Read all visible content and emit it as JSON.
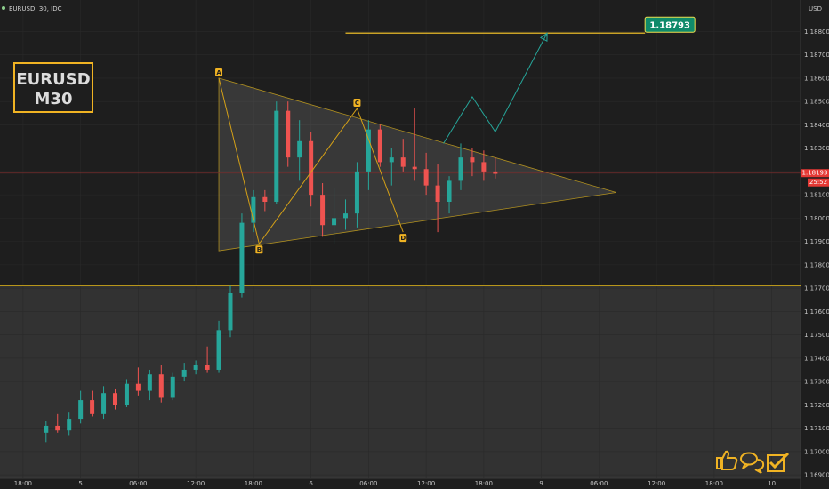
{
  "title": "EURUSD, 30, IDC",
  "currency": "USD",
  "badge": {
    "line1": "EURUSD",
    "line2": "M30"
  },
  "target": {
    "label": "1.18793",
    "value": 1.18793
  },
  "current_price": {
    "label": "1.18193",
    "value": 1.18193,
    "countdown": "25:52"
  },
  "colors": {
    "up": "#26a69a",
    "down": "#ef5350",
    "accent": "#f0b323",
    "target_green": "#0f8a6a",
    "support": "#d4a017"
  },
  "icons": [
    "thumbs-up-icon",
    "comments-icon",
    "check-box-icon"
  ],
  "pattern_points": [
    {
      "label": "A",
      "x": 15.0,
      "y": 1.186
    },
    {
      "label": "B",
      "x": 18.5,
      "y": 1.1789
    },
    {
      "label": "C",
      "x": 27.0,
      "y": 1.1847
    },
    {
      "label": "D",
      "x": 31.0,
      "y": 1.1794
    }
  ],
  "chart_data": {
    "type": "candlestick",
    "title": "EURUSD, 30, IDC",
    "ylabel": "USD",
    "ylim": [
      1.16885,
      1.18935
    ],
    "xlim": [
      -4,
      65.5
    ],
    "y_ticks": [
      "1.18800",
      "1.18700",
      "1.18600",
      "1.18500",
      "1.18400",
      "1.18300",
      "1.18200",
      "1.18100",
      "1.18000",
      "1.17900",
      "1.17800",
      "1.17700",
      "1.17600",
      "1.17500",
      "1.17400",
      "1.17300",
      "1.17200",
      "1.17100",
      "1.17000",
      "1.16900"
    ],
    "x_ticks": [
      {
        "label": "18:00",
        "x": -2
      },
      {
        "label": "5",
        "x": 3
      },
      {
        "label": "06:00",
        "x": 8
      },
      {
        "label": "12:00",
        "x": 13
      },
      {
        "label": "18:00",
        "x": 18
      },
      {
        "label": "6",
        "x": 23
      },
      {
        "label": "06:00",
        "x": 28
      },
      {
        "label": "12:00",
        "x": 33
      },
      {
        "label": "18:00",
        "x": 38
      },
      {
        "label": "9",
        "x": 43
      },
      {
        "label": "06:00",
        "x": 48
      },
      {
        "label": "12:00",
        "x": 53
      },
      {
        "label": "18:00",
        "x": 58
      },
      {
        "label": "10",
        "x": 63
      }
    ],
    "support_level": 1.1771,
    "target_level": 1.18793,
    "triangle": [
      {
        "x": 15.0,
        "y": 1.186
      },
      {
        "x": 49.5,
        "y": 1.1811
      },
      {
        "x": 15.0,
        "y": 1.1786
      }
    ],
    "projection": [
      {
        "x": 34.5,
        "y": 1.1832
      },
      {
        "x": 37.0,
        "y": 1.1852
      },
      {
        "x": 39.0,
        "y": 1.1837
      },
      {
        "x": 43.5,
        "y": 1.18793
      }
    ],
    "candles": [
      {
        "o": 1.1708,
        "h": 1.1713,
        "l": 1.1704,
        "c": 1.1711
      },
      {
        "o": 1.1711,
        "h": 1.1716,
        "l": 1.1708,
        "c": 1.1709
      },
      {
        "o": 1.1709,
        "h": 1.1717,
        "l": 1.1707,
        "c": 1.1714
      },
      {
        "o": 1.1714,
        "h": 1.1726,
        "l": 1.1712,
        "c": 1.1722
      },
      {
        "o": 1.1722,
        "h": 1.1726,
        "l": 1.1715,
        "c": 1.1716
      },
      {
        "o": 1.1716,
        "h": 1.1728,
        "l": 1.1714,
        "c": 1.1725
      },
      {
        "o": 1.1725,
        "h": 1.1727,
        "l": 1.1718,
        "c": 1.172
      },
      {
        "o": 1.172,
        "h": 1.1731,
        "l": 1.1719,
        "c": 1.1729
      },
      {
        "o": 1.1729,
        "h": 1.1736,
        "l": 1.1724,
        "c": 1.1726
      },
      {
        "o": 1.1726,
        "h": 1.1735,
        "l": 1.1722,
        "c": 1.1733
      },
      {
        "o": 1.1733,
        "h": 1.1737,
        "l": 1.1721,
        "c": 1.1723
      },
      {
        "o": 1.1723,
        "h": 1.1734,
        "l": 1.1722,
        "c": 1.1732
      },
      {
        "o": 1.1732,
        "h": 1.1738,
        "l": 1.173,
        "c": 1.1735
      },
      {
        "o": 1.1735,
        "h": 1.1739,
        "l": 1.1733,
        "c": 1.1737
      },
      {
        "o": 1.1737,
        "h": 1.1745,
        "l": 1.1734,
        "c": 1.1735
      },
      {
        "o": 1.1735,
        "h": 1.1756,
        "l": 1.1734,
        "c": 1.1752
      },
      {
        "o": 1.1752,
        "h": 1.1771,
        "l": 1.1749,
        "c": 1.1768
      },
      {
        "o": 1.1768,
        "h": 1.1802,
        "l": 1.1766,
        "c": 1.1798
      },
      {
        "o": 1.1798,
        "h": 1.1812,
        "l": 1.1794,
        "c": 1.1809
      },
      {
        "o": 1.1809,
        "h": 1.1812,
        "l": 1.1803,
        "c": 1.1807
      },
      {
        "o": 1.1807,
        "h": 1.185,
        "l": 1.1806,
        "c": 1.1846
      },
      {
        "o": 1.1846,
        "h": 1.185,
        "l": 1.1822,
        "c": 1.1826
      },
      {
        "o": 1.1826,
        "h": 1.1842,
        "l": 1.1816,
        "c": 1.1833
      },
      {
        "o": 1.1833,
        "h": 1.1837,
        "l": 1.1805,
        "c": 1.181
      },
      {
        "o": 1.181,
        "h": 1.1815,
        "l": 1.1792,
        "c": 1.1797
      },
      {
        "o": 1.1797,
        "h": 1.1813,
        "l": 1.1789,
        "c": 1.18
      },
      {
        "o": 1.18,
        "h": 1.1808,
        "l": 1.1795,
        "c": 1.1802
      },
      {
        "o": 1.1802,
        "h": 1.1824,
        "l": 1.1796,
        "c": 1.182
      },
      {
        "o": 1.182,
        "h": 1.1842,
        "l": 1.1812,
        "c": 1.1838
      },
      {
        "o": 1.1838,
        "h": 1.184,
        "l": 1.1822,
        "c": 1.1824
      },
      {
        "o": 1.1824,
        "h": 1.183,
        "l": 1.1814,
        "c": 1.1826
      },
      {
        "o": 1.1826,
        "h": 1.1834,
        "l": 1.182,
        "c": 1.1822
      },
      {
        "o": 1.1822,
        "h": 1.1847,
        "l": 1.1816,
        "c": 1.1821
      },
      {
        "o": 1.1821,
        "h": 1.1828,
        "l": 1.181,
        "c": 1.1814
      },
      {
        "o": 1.1814,
        "h": 1.1823,
        "l": 1.1794,
        "c": 1.1807
      },
      {
        "o": 1.1807,
        "h": 1.1818,
        "l": 1.1802,
        "c": 1.1816
      },
      {
        "o": 1.1816,
        "h": 1.1832,
        "l": 1.1812,
        "c": 1.1826
      },
      {
        "o": 1.1826,
        "h": 1.183,
        "l": 1.1818,
        "c": 1.1824
      },
      {
        "o": 1.1824,
        "h": 1.1829,
        "l": 1.1816,
        "c": 1.182
      },
      {
        "o": 1.182,
        "h": 1.1826,
        "l": 1.1817,
        "c": 1.1819
      }
    ]
  }
}
